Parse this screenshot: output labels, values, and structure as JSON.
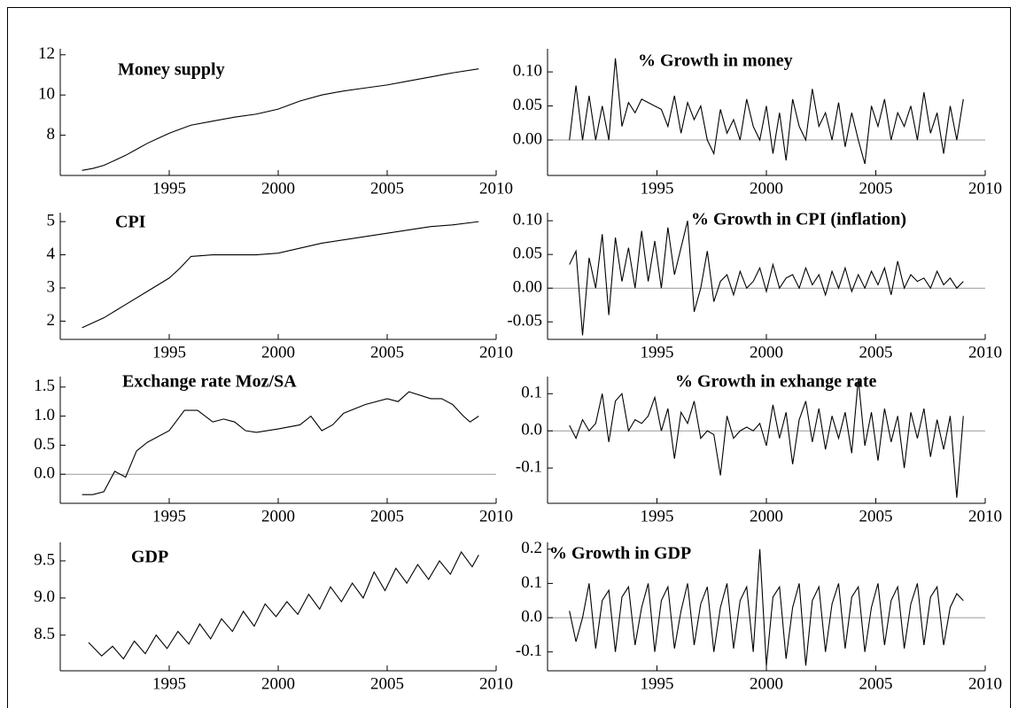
{
  "chart_data": [
    {
      "type": "line",
      "title": "Money supply",
      "color": "#000000",
      "x": [
        1991,
        1991.5,
        1992,
        1992.5,
        1993,
        1993.5,
        1994,
        1994.5,
        1995,
        1995.5,
        1996,
        1997,
        1998,
        1999,
        2000,
        2001,
        2002,
        2003,
        2004,
        2005,
        2006,
        2007,
        2008,
        2009.2
      ],
      "values": [
        6.25,
        6.35,
        6.5,
        6.75,
        7.0,
        7.3,
        7.6,
        7.85,
        8.1,
        8.3,
        8.5,
        8.7,
        8.9,
        9.05,
        9.3,
        9.7,
        10.0,
        10.2,
        10.35,
        10.5,
        10.7,
        10.9,
        11.1,
        11.3
      ],
      "xlim": [
        1990,
        2010
      ],
      "xticks": [
        1995,
        2000,
        2005,
        2010
      ],
      "ylim": [
        6,
        12.3
      ],
      "yticks": [
        8,
        10,
        12
      ]
    },
    {
      "type": "line",
      "title": "% Growth in money",
      "color": "#000000",
      "x": [
        1991,
        1991.3,
        1991.6,
        1991.9,
        1992.2,
        1992.5,
        1992.8,
        1993.1,
        1993.4,
        1993.7,
        1994,
        1994.3,
        1994.6,
        1994.9,
        1995.2,
        1995.5,
        1995.8,
        1996.1,
        1996.4,
        1996.7,
        1997,
        1997.3,
        1997.6,
        1997.9,
        1998.2,
        1998.5,
        1998.8,
        1999.1,
        1999.4,
        1999.7,
        2000,
        2000.3,
        2000.6,
        2000.9,
        2001.2,
        2001.5,
        2001.8,
        2002.1,
        2002.4,
        2002.7,
        2003,
        2003.3,
        2003.6,
        2003.9,
        2004.2,
        2004.5,
        2004.8,
        2005.1,
        2005.4,
        2005.7,
        2006,
        2006.3,
        2006.6,
        2006.9,
        2007.2,
        2007.5,
        2007.8,
        2008.1,
        2008.4,
        2008.7,
        2009
      ],
      "values": [
        0.0,
        0.08,
        0.0,
        0.065,
        0.0,
        0.05,
        0.0,
        0.12,
        0.02,
        0.055,
        0.04,
        0.06,
        0.055,
        0.05,
        0.045,
        0.02,
        0.065,
        0.01,
        0.055,
        0.03,
        0.05,
        0.0,
        -0.02,
        0.045,
        0.01,
        0.03,
        0.0,
        0.06,
        0.02,
        0.0,
        0.05,
        -0.02,
        0.04,
        -0.03,
        0.06,
        0.02,
        0.0,
        0.075,
        0.02,
        0.04,
        0.0,
        0.055,
        -0.01,
        0.04,
        0.0,
        -0.035,
        0.05,
        0.02,
        0.06,
        0.0,
        0.04,
        0.02,
        0.05,
        0.0,
        0.07,
        0.01,
        0.04,
        -0.02,
        0.05,
        0.0,
        0.06
      ],
      "xlim": [
        1990,
        2010
      ],
      "xticks": [
        1995,
        2000,
        2005,
        2010
      ],
      "ylim": [
        -0.052,
        0.134
      ],
      "yticks": [
        {
          "value": 0,
          "label": "0.00"
        },
        {
          "value": 0.05,
          "label": "0.05"
        },
        {
          "value": 0.1,
          "label": "0.10"
        }
      ]
    },
    {
      "type": "line",
      "title": "CPI",
      "color": "#000000",
      "x": [
        1991,
        1992,
        1993,
        1994,
        1995,
        1995.5,
        1996,
        1997,
        1998,
        1999,
        2000,
        2001,
        2002,
        2003,
        2004,
        2005,
        2006,
        2007,
        2008,
        2009.2
      ],
      "values": [
        1.8,
        2.1,
        2.5,
        2.9,
        3.3,
        3.6,
        3.95,
        4.0,
        4.0,
        4.0,
        4.05,
        4.2,
        4.35,
        4.45,
        4.55,
        4.65,
        4.75,
        4.85,
        4.9,
        5.0
      ],
      "xlim": [
        1990,
        2010
      ],
      "xticks": [
        1995,
        2000,
        2005,
        2010
      ],
      "ylim": [
        1.45,
        5.27
      ],
      "yticks": [
        2,
        3,
        4,
        5
      ]
    },
    {
      "type": "line",
      "title": "% Growth in CPI (inflation)",
      "color": "#000000",
      "x": [
        1991,
        1991.3,
        1991.6,
        1991.9,
        1992.2,
        1992.5,
        1992.8,
        1993.1,
        1993.4,
        1993.7,
        1994,
        1994.3,
        1994.6,
        1994.9,
        1995.2,
        1995.5,
        1995.8,
        1996.1,
        1996.4,
        1996.7,
        1997,
        1997.3,
        1997.6,
        1997.9,
        1998.2,
        1998.5,
        1998.8,
        1999.1,
        1999.4,
        1999.7,
        2000,
        2000.3,
        2000.6,
        2000.9,
        2001.2,
        2001.5,
        2001.8,
        2002.1,
        2002.4,
        2002.7,
        2003,
        2003.3,
        2003.6,
        2003.9,
        2004.2,
        2004.5,
        2004.8,
        2005.1,
        2005.4,
        2005.7,
        2006,
        2006.3,
        2006.6,
        2006.9,
        2007.2,
        2007.5,
        2007.8,
        2008.1,
        2008.4,
        2008.7,
        2009
      ],
      "values": [
        0.035,
        0.055,
        -0.07,
        0.045,
        0.0,
        0.08,
        -0.04,
        0.075,
        0.01,
        0.06,
        0.0,
        0.085,
        0.01,
        0.07,
        0.0,
        0.09,
        0.02,
        0.06,
        0.1,
        -0.035,
        0.0,
        0.055,
        -0.02,
        0.01,
        0.02,
        -0.01,
        0.025,
        0.0,
        0.01,
        0.03,
        -0.005,
        0.035,
        0.0,
        0.015,
        0.02,
        0.0,
        0.03,
        0.005,
        0.02,
        -0.01,
        0.025,
        0.0,
        0.03,
        -0.005,
        0.02,
        0.0,
        0.025,
        0.005,
        0.03,
        -0.01,
        0.04,
        0.0,
        0.02,
        0.01,
        0.015,
        0.0,
        0.025,
        0.005,
        0.015,
        0.0,
        0.01
      ],
      "xlim": [
        1990,
        2010
      ],
      "xticks": [
        1995,
        2000,
        2005,
        2010
      ],
      "ylim": [
        -0.076,
        0.112
      ],
      "yticks": [
        {
          "value": -0.05,
          "label": "-0.05"
        },
        {
          "value": 0,
          "label": "0.00"
        },
        {
          "value": 0.05,
          "label": "0.05"
        },
        {
          "value": 0.1,
          "label": "0.10"
        }
      ]
    },
    {
      "type": "line",
      "title": "Exchange rate Moz/SA",
      "color": "#000000",
      "x": [
        1991,
        1991.5,
        1992,
        1992.5,
        1993,
        1993.5,
        1994,
        1995,
        1995.7,
        1996.3,
        1997,
        1997.5,
        1998,
        1998.5,
        1999,
        2000,
        2001,
        2001.5,
        2002,
        2002.5,
        2003,
        2004,
        2005,
        2005.5,
        2006,
        2007,
        2007.5,
        2008,
        2008.5,
        2008.8,
        2009.2
      ],
      "values": [
        -0.35,
        -0.35,
        -0.3,
        0.05,
        -0.05,
        0.4,
        0.55,
        0.75,
        1.1,
        1.1,
        0.9,
        0.95,
        0.9,
        0.75,
        0.72,
        0.78,
        0.85,
        1.0,
        0.75,
        0.85,
        1.05,
        1.2,
        1.3,
        1.25,
        1.42,
        1.3,
        1.3,
        1.2,
        1.0,
        0.9,
        1.0
      ],
      "xlim": [
        1990,
        2010
      ],
      "xticks": [
        1995,
        2000,
        2005,
        2010
      ],
      "ylim": [
        -0.5,
        1.68
      ],
      "yticks": [
        {
          "value": 0,
          "label": "0.0"
        },
        {
          "value": 0.5,
          "label": "0.5"
        },
        {
          "value": 1,
          "label": "1.0"
        },
        {
          "value": 1.5,
          "label": "1.5"
        }
      ]
    },
    {
      "type": "line",
      "title": "% Growth in exhange rate",
      "color": "#000000",
      "x": [
        1991,
        1991.3,
        1991.6,
        1991.9,
        1992.2,
        1992.5,
        1992.8,
        1993.1,
        1993.4,
        1993.7,
        1994,
        1994.3,
        1994.6,
        1994.9,
        1995.2,
        1995.5,
        1995.8,
        1996.1,
        1996.4,
        1996.7,
        1997,
        1997.3,
        1997.6,
        1997.9,
        1998.2,
        1998.5,
        1998.8,
        1999.1,
        1999.4,
        1999.7,
        2000,
        2000.3,
        2000.6,
        2000.9,
        2001.2,
        2001.5,
        2001.8,
        2002.1,
        2002.4,
        2002.7,
        2003,
        2003.3,
        2003.6,
        2003.9,
        2004.2,
        2004.5,
        2004.8,
        2005.1,
        2005.4,
        2005.7,
        2006,
        2006.3,
        2006.6,
        2006.9,
        2007.2,
        2007.5,
        2007.8,
        2008.1,
        2008.4,
        2008.7,
        2009
      ],
      "values": [
        0.015,
        -0.02,
        0.03,
        0.0,
        0.02,
        0.1,
        -0.03,
        0.08,
        0.1,
        0.0,
        0.03,
        0.02,
        0.04,
        0.09,
        0.0,
        0.06,
        -0.075,
        0.05,
        0.02,
        0.08,
        -0.02,
        0.0,
        -0.01,
        -0.12,
        0.04,
        -0.02,
        0.0,
        0.01,
        0.0,
        0.02,
        -0.04,
        0.07,
        -0.02,
        0.05,
        -0.09,
        0.03,
        0.08,
        -0.03,
        0.06,
        -0.05,
        0.04,
        -0.02,
        0.05,
        -0.06,
        0.14,
        -0.04,
        0.05,
        -0.08,
        0.06,
        -0.03,
        0.04,
        -0.1,
        0.05,
        -0.02,
        0.06,
        -0.07,
        0.03,
        -0.05,
        0.04,
        -0.18,
        0.04
      ],
      "xlim": [
        1990,
        2010
      ],
      "xticks": [
        1995,
        2000,
        2005,
        2010
      ],
      "ylim": [
        -0.195,
        0.146
      ],
      "yticks": [
        -0.1,
        {
          "value": 0,
          "label": "0.0"
        },
        0.1
      ]
    },
    {
      "type": "line",
      "title": "GDP",
      "color": "#000000",
      "x": [
        1991.3,
        1991.9,
        1992.4,
        1992.9,
        1993.4,
        1993.9,
        1994.4,
        1994.9,
        1995.4,
        1995.9,
        1996.4,
        1996.9,
        1997.4,
        1997.9,
        1998.4,
        1998.9,
        1999.4,
        1999.9,
        2000.4,
        2000.9,
        2001.4,
        2001.9,
        2002.4,
        2002.9,
        2003.4,
        2003.9,
        2004.4,
        2004.9,
        2005.4,
        2005.9,
        2006.4,
        2006.9,
        2007.4,
        2007.9,
        2008.4,
        2008.9,
        2009.2
      ],
      "values": [
        8.4,
        8.22,
        8.35,
        8.18,
        8.42,
        8.25,
        8.5,
        8.32,
        8.55,
        8.38,
        8.65,
        8.45,
        8.72,
        8.55,
        8.82,
        8.62,
        8.92,
        8.75,
        8.95,
        8.78,
        9.05,
        8.85,
        9.15,
        8.95,
        9.2,
        9.0,
        9.35,
        9.1,
        9.4,
        9.2,
        9.45,
        9.25,
        9.5,
        9.32,
        9.62,
        9.42,
        9.58
      ],
      "xlim": [
        1990,
        2010
      ],
      "xticks": [
        1995,
        2000,
        2005,
        2010
      ],
      "ylim": [
        8.02,
        9.75
      ],
      "yticks": [
        {
          "value": 8.5,
          "label": "8.5"
        },
        {
          "value": 9,
          "label": "9.0"
        },
        {
          "value": 9.5,
          "label": "9.5"
        }
      ]
    },
    {
      "type": "line",
      "title": "% Growth in GDP",
      "color": "#000000",
      "x": [
        1991,
        1991.3,
        1991.6,
        1991.9,
        1992.2,
        1992.5,
        1992.8,
        1993.1,
        1993.4,
        1993.7,
        1994,
        1994.3,
        1994.6,
        1994.9,
        1995.2,
        1995.5,
        1995.8,
        1996.1,
        1996.4,
        1996.7,
        1997,
        1997.3,
        1997.6,
        1997.9,
        1998.2,
        1998.5,
        1998.8,
        1999.1,
        1999.4,
        1999.7,
        2000,
        2000.3,
        2000.6,
        2000.9,
        2001.2,
        2001.5,
        2001.8,
        2002.1,
        2002.4,
        2002.7,
        2003,
        2003.3,
        2003.6,
        2003.9,
        2004.2,
        2004.5,
        2004.8,
        2005.1,
        2005.4,
        2005.7,
        2006,
        2006.3,
        2006.6,
        2006.9,
        2007.2,
        2007.5,
        2007.8,
        2008.1,
        2008.4,
        2008.7,
        2009
      ],
      "values": [
        0.02,
        -0.07,
        0.0,
        0.1,
        -0.09,
        0.05,
        0.08,
        -0.1,
        0.06,
        0.09,
        -0.08,
        0.03,
        0.1,
        -0.1,
        0.05,
        0.09,
        -0.09,
        0.02,
        0.1,
        -0.08,
        0.04,
        0.09,
        -0.1,
        0.03,
        0.1,
        -0.09,
        0.05,
        0.09,
        -0.1,
        0.2,
        -0.14,
        0.06,
        0.09,
        -0.12,
        0.03,
        0.1,
        -0.14,
        0.05,
        0.09,
        -0.1,
        0.04,
        0.1,
        -0.09,
        0.06,
        0.09,
        -0.1,
        0.03,
        0.1,
        -0.08,
        0.05,
        0.09,
        -0.09,
        0.04,
        0.1,
        -0.08,
        0.06,
        0.09,
        -0.08,
        0.03,
        0.07,
        0.05
      ],
      "xlim": [
        1990,
        2010
      ],
      "xticks": [
        1995,
        2000,
        2005,
        2010
      ],
      "ylim": [
        -0.155,
        0.22
      ],
      "yticks": [
        -0.1,
        {
          "value": 0,
          "label": "0.0"
        },
        0.1,
        0.2
      ]
    }
  ]
}
